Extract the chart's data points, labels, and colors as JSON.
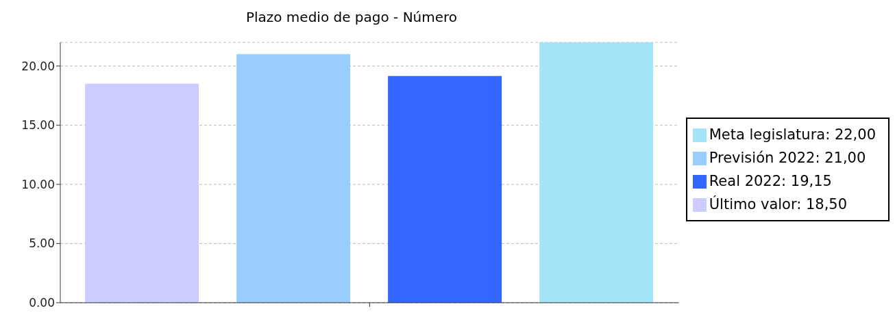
{
  "chart_data": {
    "type": "bar",
    "title": "Plazo medio de pago - Número",
    "categories": [
      null
    ],
    "series": [
      {
        "name": "Último valor: 18,50",
        "color": "#ccccff",
        "values": [
          18.5
        ]
      },
      {
        "name": "Previsión 2022: 21,00",
        "color": "#99ccff",
        "values": [
          21
        ]
      },
      {
        "name": "Real 2022: 19,15",
        "color": "#3366ff",
        "values": [
          19.15
        ]
      },
      {
        "name": "Meta legislatura: 22,00",
        "color": "#a3e4f7",
        "values": [
          22
        ]
      }
    ],
    "ylim": [
      0,
      22
    ],
    "yticks": [
      {
        "value": 0,
        "label": "0.00"
      },
      {
        "value": 5,
        "label": "5.00"
      },
      {
        "value": 10,
        "label": "10.00"
      },
      {
        "value": 15,
        "label": "15.00"
      },
      {
        "value": 20,
        "label": "20.00"
      }
    ],
    "grid": "y",
    "legend": "right"
  }
}
